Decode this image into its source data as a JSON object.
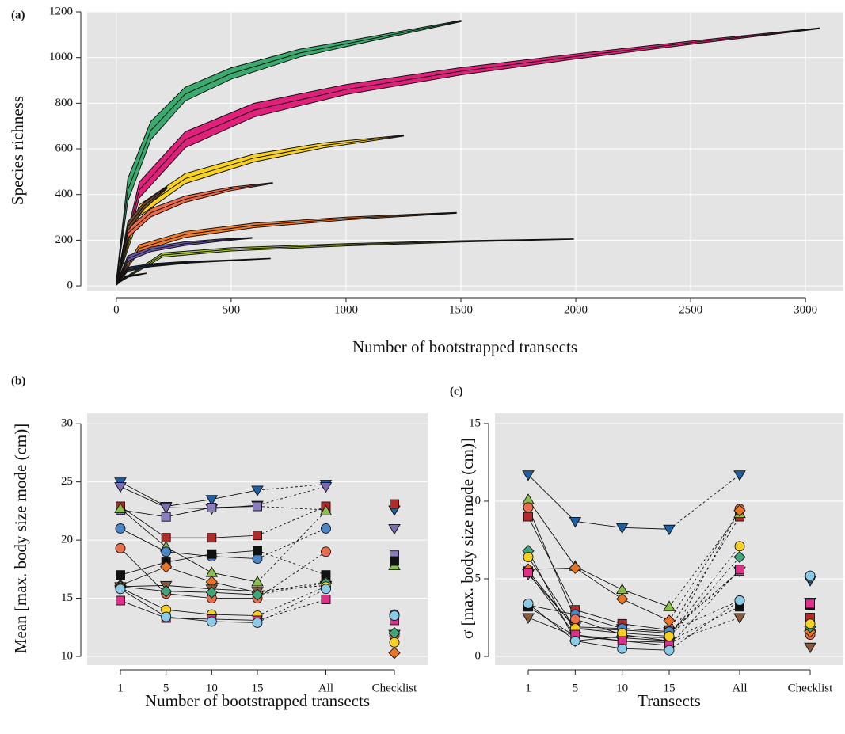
{
  "chart_data": [
    {
      "type": "band",
      "panel_label": "(a)",
      "x_label": "Number of bootstrapped transects",
      "y_label": "Species richness",
      "xlim": [
        -127,
        3165
      ],
      "ylim": [
        -24,
        1200
      ],
      "xticks": [
        0,
        500,
        1000,
        1500,
        2000,
        2500,
        3000
      ],
      "yticks": [
        0,
        200,
        400,
        600,
        800,
        1000,
        1200
      ],
      "grid": true,
      "series": [
        {
          "color": "#3aaa6e",
          "x": [
            1,
            50,
            150,
            300,
            500,
            800,
            1100,
            1500
          ],
          "values": [
            30,
            420,
            680,
            840,
            930,
            1020,
            1080,
            1160
          ],
          "lower": [
            25,
            370,
            640,
            810,
            905,
            1003,
            1070,
            1157
          ],
          "upper": [
            35,
            470,
            720,
            870,
            955,
            1037,
            1090,
            1163
          ]
        },
        {
          "color": "#e0207a",
          "x": [
            1,
            100,
            300,
            600,
            1000,
            1500,
            2000,
            2500,
            3060
          ],
          "values": [
            25,
            420,
            640,
            770,
            860,
            940,
            1005,
            1065,
            1128
          ],
          "lower": [
            20,
            385,
            605,
            740,
            838,
            924,
            994,
            1058,
            1126
          ],
          "upper": [
            30,
            455,
            675,
            800,
            882,
            956,
            1016,
            1072,
            1130
          ]
        },
        {
          "color": "#f8d21c",
          "x": [
            1,
            100,
            300,
            600,
            900,
            1250
          ],
          "values": [
            20,
            330,
            470,
            560,
            615,
            658
          ],
          "lower": [
            15,
            305,
            448,
            543,
            604,
            656
          ],
          "upper": [
            25,
            355,
            492,
            577,
            626,
            660
          ]
        },
        {
          "color": "#f06a48",
          "x": [
            1,
            50,
            150,
            300,
            500,
            680
          ],
          "values": [
            15,
            230,
            320,
            380,
            425,
            450
          ],
          "lower": [
            12,
            210,
            302,
            366,
            417,
            448
          ],
          "upper": [
            18,
            250,
            338,
            394,
            433,
            452
          ]
        },
        {
          "color": "#f07c28",
          "x": [
            1,
            100,
            300,
            600,
            1000,
            1480
          ],
          "values": [
            15,
            165,
            225,
            265,
            295,
            320
          ],
          "lower": [
            12,
            150,
            212,
            255,
            289,
            318
          ],
          "upper": [
            18,
            180,
            238,
            275,
            301,
            322
          ]
        },
        {
          "color": "#6a58a8",
          "x": [
            1,
            50,
            150,
            300,
            450,
            590
          ],
          "values": [
            10,
            120,
            160,
            185,
            200,
            210
          ],
          "lower": [
            8,
            108,
            150,
            177,
            195,
            208
          ],
          "upper": [
            12,
            132,
            170,
            193,
            205,
            212
          ]
        },
        {
          "color": "#a8c830",
          "x": [
            1,
            200,
            500,
            1000,
            1500,
            1990
          ],
          "values": [
            10,
            135,
            160,
            180,
            195,
            205
          ],
          "lower": [
            8,
            126,
            153,
            175,
            192,
            204
          ],
          "upper": [
            12,
            144,
            167,
            185,
            198,
            206
          ]
        },
        {
          "color": "#1a3a70",
          "x": [
            1,
            50,
            150,
            300,
            500,
            670
          ],
          "values": [
            8,
            75,
            92,
            103,
            112,
            120
          ],
          "lower": [
            6,
            68,
            87,
            99,
            110,
            119
          ],
          "upper": [
            10,
            82,
            97,
            107,
            114,
            121
          ]
        },
        {
          "color": "#2a4a60",
          "x": [
            1,
            50,
            150,
            310
          ],
          "values": [
            8,
            70,
            88,
            100
          ],
          "lower": [
            6,
            64,
            84,
            99
          ],
          "upper": [
            10,
            76,
            92,
            101
          ]
        },
        {
          "color": "#222222",
          "x": [
            1,
            40,
            130
          ],
          "values": [
            5,
            40,
            55
          ],
          "lower": [
            4,
            36,
            54
          ],
          "upper": [
            6,
            44,
            56
          ]
        },
        {
          "color": "#6b4a2a",
          "x": [
            1,
            50,
            120,
            220
          ],
          "values": [
            15,
            260,
            350,
            430
          ],
          "lower": [
            12,
            240,
            335,
            426
          ],
          "upper": [
            18,
            280,
            365,
            434
          ]
        }
      ]
    },
    {
      "type": "dotline",
      "panel_label": "(b)",
      "x_label": "Number of bootstrapped transects",
      "y_label": "Mean [max. body size mode (cm)]",
      "categories": [
        "1",
        "5",
        "10",
        "15",
        "All",
        "Checklist"
      ],
      "ylim": [
        9.25,
        30.9
      ],
      "yticks": [
        10,
        15,
        20,
        25,
        30
      ],
      "grid": true,
      "series": [
        {
          "color": "#1f5fa3",
          "marker": "triangle-down",
          "values": [
            25.0,
            22.9,
            23.5,
            24.3,
            24.8,
            22.6
          ]
        },
        {
          "color": "#7b6cb3",
          "marker": "triangle-down",
          "values": [
            24.6,
            22.8,
            22.7,
            23.0,
            24.6,
            21.0
          ]
        },
        {
          "color": "#8c7cc0",
          "marker": "square",
          "values": [
            22.6,
            22.0,
            22.8,
            22.9,
            22.6,
            18.7
          ]
        },
        {
          "color": "#b22a2a",
          "marker": "square",
          "values": [
            22.9,
            20.2,
            20.2,
            20.4,
            22.9,
            23.1
          ]
        },
        {
          "color": "#8cc04c",
          "marker": "triangle-up",
          "values": [
            22.7,
            19.4,
            17.2,
            16.4,
            22.5,
            17.8
          ]
        },
        {
          "color": "#4a86c8",
          "marker": "circle",
          "values": [
            21.0,
            19.0,
            18.6,
            18.4,
            21.0,
            13.6
          ]
        },
        {
          "color": "#ea6d4c",
          "marker": "circle",
          "values": [
            19.3,
            15.4,
            15.0,
            15.0,
            19.0,
            11.8
          ]
        },
        {
          "color": "#111111",
          "marker": "square",
          "values": [
            17.0,
            18.1,
            18.8,
            19.1,
            17.0,
            18.2
          ]
        },
        {
          "color": "#ea7424",
          "marker": "diamond",
          "values": [
            16.1,
            17.7,
            16.4,
            15.5,
            16.4,
            10.3
          ]
        },
        {
          "color": "#8b5a3c",
          "marker": "triangle-down",
          "values": [
            16.0,
            16.1,
            15.8,
            15.6,
            16.1,
            11.9
          ]
        },
        {
          "color": "#3fa57a",
          "marker": "diamond",
          "values": [
            16.0,
            15.6,
            15.5,
            15.3,
            16.3,
            12.0
          ]
        },
        {
          "color": "#f8d020",
          "marker": "circle",
          "values": [
            15.9,
            14.0,
            13.6,
            13.5,
            16.0,
            11.2
          ]
        },
        {
          "color": "#e0308a",
          "marker": "square",
          "values": [
            14.8,
            13.3,
            13.2,
            13.1,
            14.9,
            13.1
          ]
        },
        {
          "color": "#8ccbe8",
          "marker": "circle",
          "values": [
            15.8,
            13.4,
            13.0,
            12.9,
            15.8,
            13.5
          ]
        }
      ]
    },
    {
      "type": "dotline",
      "panel_label": "(c)",
      "x_label": "Transects",
      "y_label": "σ [max. body size mode (cm)]",
      "categories": [
        "1",
        "5",
        "10",
        "15",
        "All",
        "Checklist"
      ],
      "ylim": [
        -0.56,
        15.66
      ],
      "yticks": [
        0,
        5,
        10,
        15
      ],
      "grid": true,
      "series": [
        {
          "color": "#1f5fa3",
          "marker": "triangle-down",
          "values": [
            11.7,
            8.7,
            8.3,
            8.2,
            11.7,
            4.9
          ]
        },
        {
          "color": "#7b6cb3",
          "marker": "triangle-down",
          "values": [
            5.3,
            1.9,
            1.8,
            1.6,
            5.5,
            3.5
          ]
        },
        {
          "color": "#8c7cc0",
          "marker": "square",
          "values": [
            5.5,
            1.8,
            1.7,
            1.5,
            5.5,
            3.4
          ]
        },
        {
          "color": "#b22a2a",
          "marker": "square",
          "values": [
            9.0,
            3.0,
            2.1,
            1.7,
            9.0,
            2.5
          ]
        },
        {
          "color": "#8cc04c",
          "marker": "triangle-up",
          "values": [
            10.1,
            5.8,
            4.3,
            3.2,
            9.2,
            1.9
          ]
        },
        {
          "color": "#4a86c8",
          "marker": "circle",
          "values": [
            3.3,
            2.7,
            1.8,
            1.6,
            3.6,
            5.1
          ]
        },
        {
          "color": "#ea6d4c",
          "marker": "circle",
          "values": [
            9.6,
            2.4,
            1.4,
            1.0,
            9.5,
            1.4
          ]
        },
        {
          "color": "#111111",
          "marker": "square",
          "values": [
            3.2,
            1.3,
            1.2,
            1.0,
            3.2,
            3.3
          ]
        },
        {
          "color": "#ea7424",
          "marker": "diamond",
          "values": [
            5.6,
            5.7,
            3.7,
            2.3,
            9.4,
            1.6
          ]
        },
        {
          "color": "#8b5a3c",
          "marker": "triangle-down",
          "values": [
            2.5,
            1.3,
            1.0,
            0.9,
            2.5,
            0.6
          ]
        },
        {
          "color": "#3fa57a",
          "marker": "diamond",
          "values": [
            6.8,
            1.0,
            1.3,
            1.2,
            6.4,
            1.9
          ]
        },
        {
          "color": "#f8d020",
          "marker": "circle",
          "values": [
            6.4,
            1.8,
            1.5,
            1.3,
            7.1,
            2.1
          ]
        },
        {
          "color": "#e0308a",
          "marker": "square",
          "values": [
            5.4,
            1.4,
            1.0,
            0.7,
            5.6,
            3.4
          ]
        },
        {
          "color": "#8ccbe8",
          "marker": "circle",
          "values": [
            3.4,
            1.0,
            0.5,
            0.4,
            3.6,
            5.2
          ]
        }
      ]
    }
  ]
}
